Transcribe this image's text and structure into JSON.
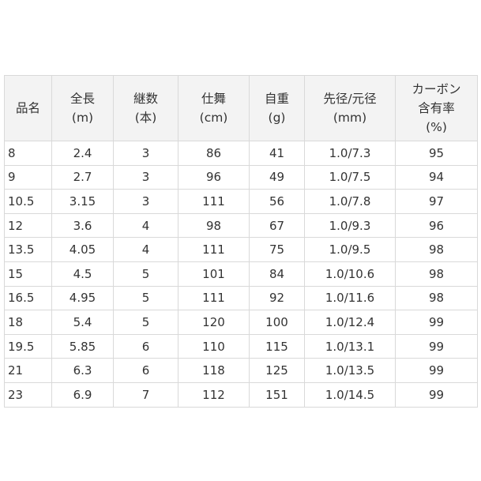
{
  "headers": [
    [
      "品名"
    ],
    [
      "全長",
      "(m)"
    ],
    [
      "継数",
      "(本)"
    ],
    [
      "仕舞",
      "(cm)"
    ],
    [
      "自重",
      "(g)"
    ],
    [
      "先径/元径",
      "(mm)"
    ],
    [
      "カーボン",
      "含有率",
      "(%)"
    ]
  ],
  "rows": [
    [
      "8",
      "2.4",
      "3",
      "86",
      "41",
      "1.0/7.3",
      "95"
    ],
    [
      "9",
      "2.7",
      "3",
      "96",
      "49",
      "1.0/7.5",
      "94"
    ],
    [
      "10.5",
      "3.15",
      "3",
      "111",
      "56",
      "1.0/7.8",
      "97"
    ],
    [
      "12",
      "3.6",
      "4",
      "98",
      "67",
      "1.0/9.3",
      "96"
    ],
    [
      "13.5",
      "4.05",
      "4",
      "111",
      "75",
      "1.0/9.5",
      "98"
    ],
    [
      "15",
      "4.5",
      "5",
      "101",
      "84",
      "1.0/10.6",
      "98"
    ],
    [
      "16.5",
      "4.95",
      "5",
      "111",
      "92",
      "1.0/11.6",
      "98"
    ],
    [
      "18",
      "5.4",
      "5",
      "120",
      "100",
      "1.0/12.4",
      "99"
    ],
    [
      "19.5",
      "5.85",
      "6",
      "110",
      "115",
      "1.0/13.1",
      "99"
    ],
    [
      "21",
      "6.3",
      "6",
      "118",
      "125",
      "1.0/13.5",
      "99"
    ],
    [
      "23",
      "6.9",
      "7",
      "112",
      "151",
      "1.0/14.5",
      "99"
    ]
  ],
  "colors": {
    "header_bg": "#f3f3f3",
    "border": "#d9d9d9"
  }
}
